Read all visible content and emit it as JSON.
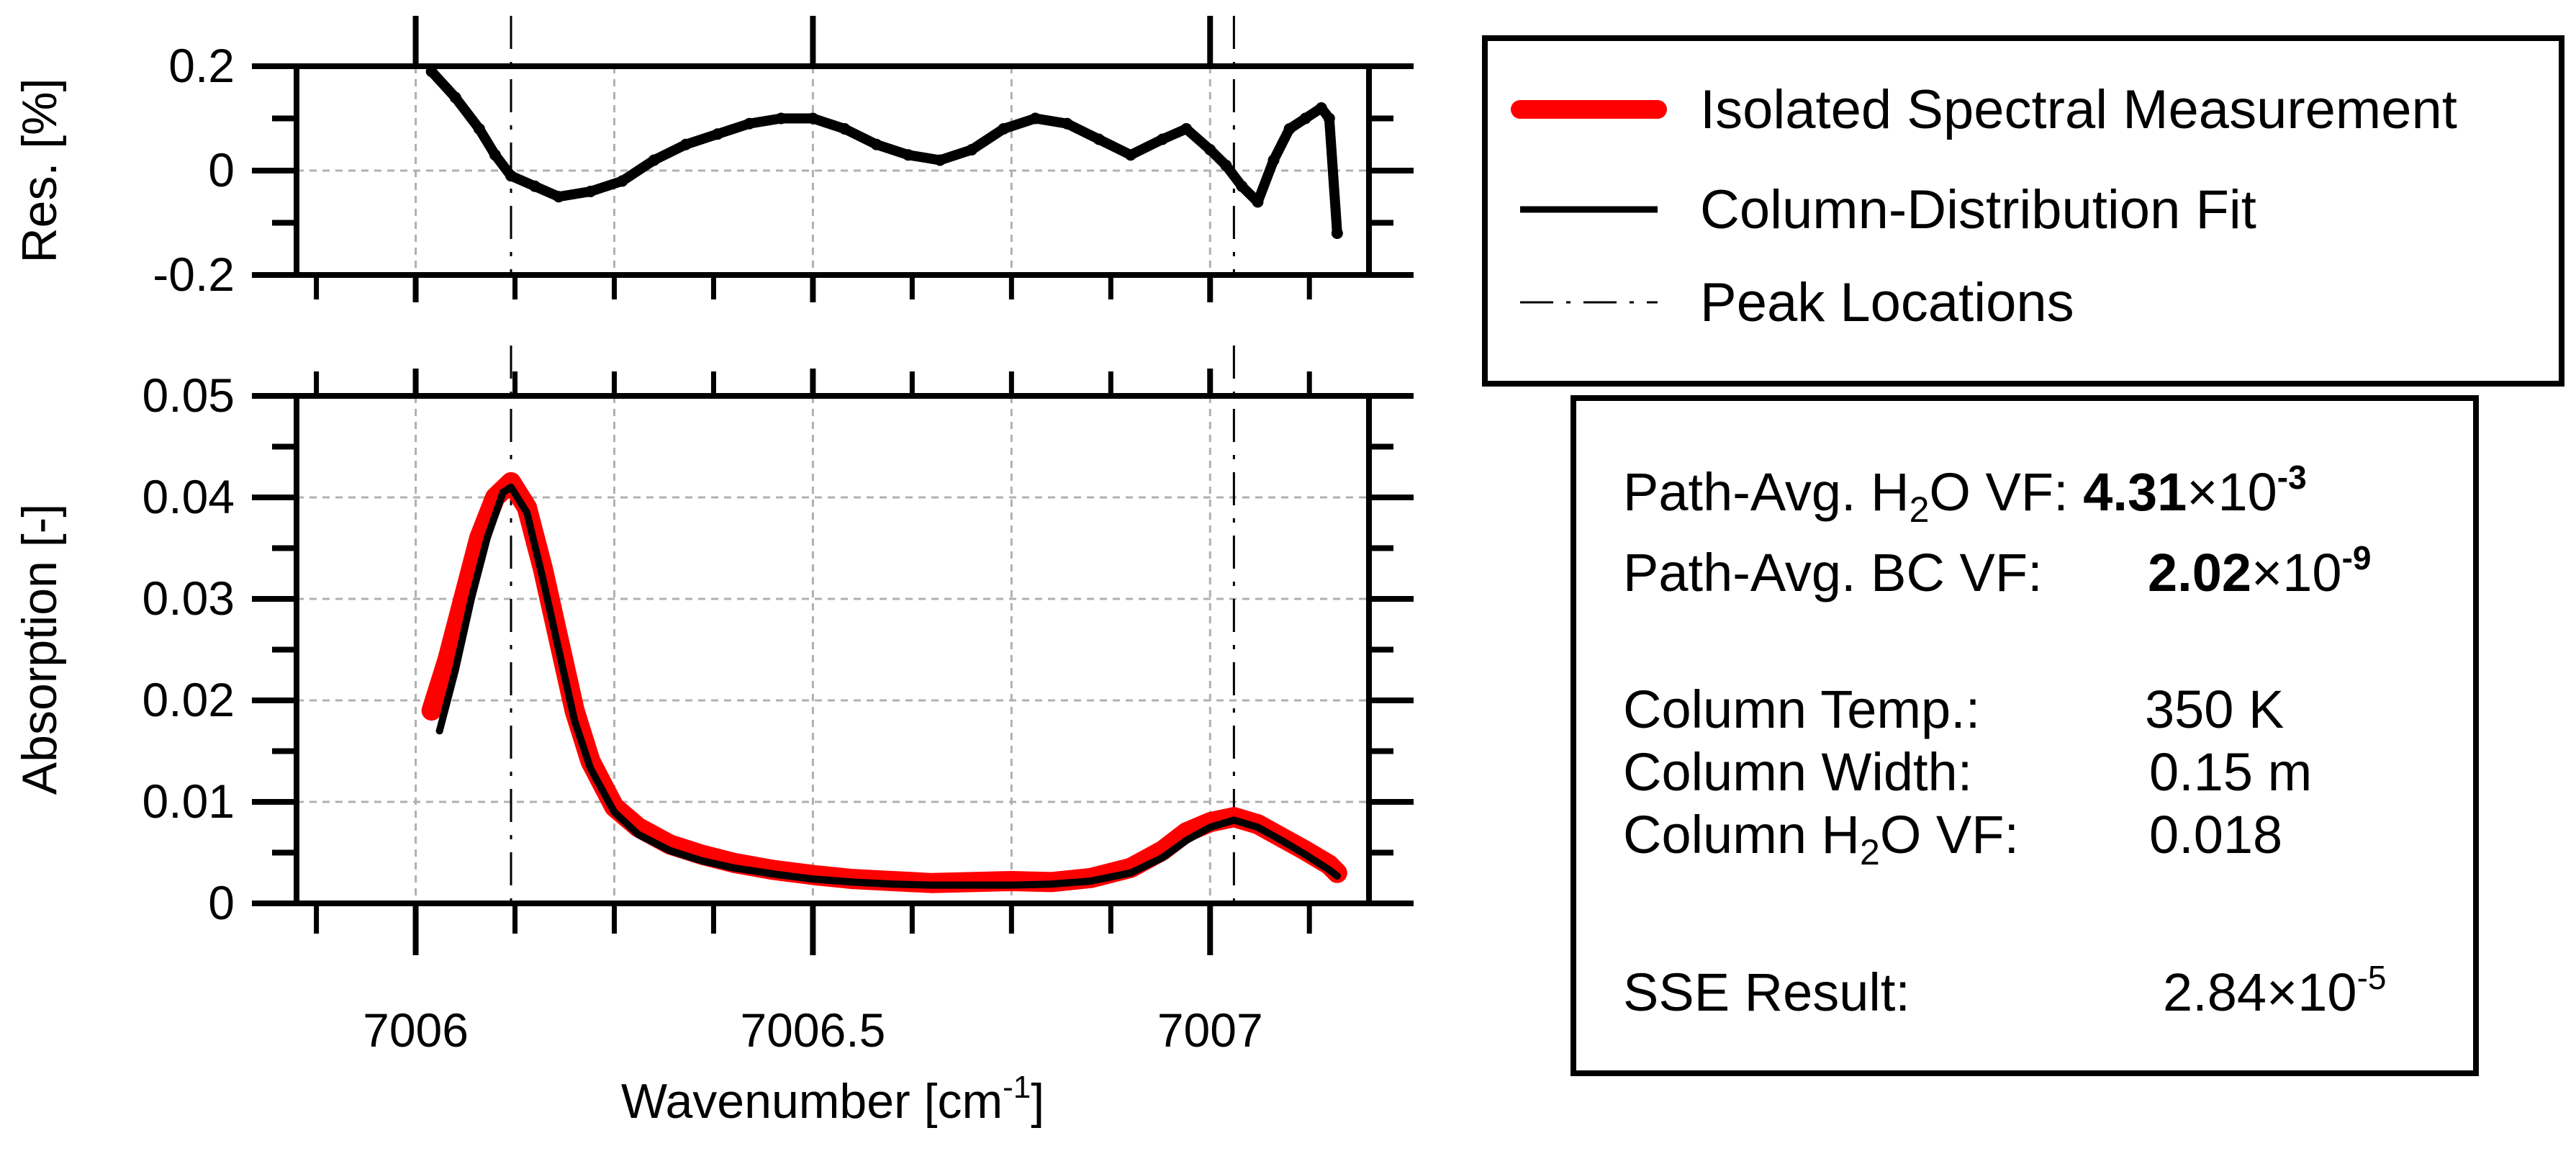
{
  "chart_data": [
    {
      "type": "line",
      "panel": "residual",
      "title": "",
      "xlabel": "",
      "ylabel": "Res. [%]",
      "xlim": [
        7005.85,
        7007.2
      ],
      "ylim": [
        -0.2,
        0.2
      ],
      "yticks": [
        0.2,
        0,
        -0.2
      ],
      "ytick_labels": [
        "0.2",
        "0",
        "-0.2"
      ],
      "grid": true,
      "series": [
        {
          "color": "#000000",
          "x": [
            7006.02,
            7006.05,
            7006.08,
            7006.1,
            7006.12,
            7006.15,
            7006.18,
            7006.22,
            7006.26,
            7006.3,
            7006.34,
            7006.38,
            7006.42,
            7006.46,
            7006.5,
            7006.54,
            7006.58,
            7006.62,
            7006.66,
            7006.7,
            7006.74,
            7006.78,
            7006.82,
            7006.86,
            7006.9,
            7006.94,
            7006.97,
            7007.0,
            7007.02,
            7007.04,
            7007.06,
            7007.08,
            7007.1,
            7007.12,
            7007.14,
            7007.15,
            7007.16
          ],
          "values": [
            0.19,
            0.14,
            0.08,
            0.03,
            -0.01,
            -0.03,
            -0.05,
            -0.04,
            -0.02,
            0.02,
            0.05,
            0.07,
            0.09,
            0.1,
            0.1,
            0.08,
            0.05,
            0.03,
            0.02,
            0.04,
            0.08,
            0.1,
            0.09,
            0.06,
            0.03,
            0.06,
            0.08,
            0.04,
            0.01,
            -0.03,
            -0.06,
            0.02,
            0.08,
            0.1,
            0.12,
            0.1,
            -0.12
          ]
        }
      ]
    },
    {
      "type": "line",
      "panel": "absorption",
      "title": "",
      "xlabel": "Wavenumber [cm-1]",
      "ylabel": "Absorption [-]",
      "xlim": [
        7005.85,
        7007.2
      ],
      "ylim": [
        0,
        0.05
      ],
      "xticks": [
        7006,
        7006.5,
        7007
      ],
      "xtick_labels": [
        "7006",
        "7006.5",
        "7007"
      ],
      "yticks": [
        0,
        0.01,
        0.02,
        0.03,
        0.04,
        0.05
      ],
      "ytick_labels": [
        "0",
        "0.01",
        "0.02",
        "0.03",
        "0.04",
        "0.05"
      ],
      "grid": true,
      "peak_locations": [
        7006.12,
        7007.03
      ],
      "series": [
        {
          "name": "Isolated Spectral Measurement",
          "color": "#ff0000",
          "x": [
            7006.02,
            7006.04,
            7006.06,
            7006.08,
            7006.1,
            7006.12,
            7006.14,
            7006.16,
            7006.18,
            7006.2,
            7006.22,
            7006.25,
            7006.28,
            7006.32,
            7006.36,
            7006.4,
            7006.45,
            7006.5,
            7006.55,
            7006.6,
            7006.65,
            7006.7,
            7006.75,
            7006.8,
            7006.85,
            7006.9,
            7006.94,
            7006.97,
            7007.0,
            7007.03,
            7007.06,
            7007.09,
            7007.12,
            7007.15,
            7007.16
          ],
          "values": [
            0.019,
            0.024,
            0.03,
            0.036,
            0.04,
            0.0415,
            0.039,
            0.033,
            0.026,
            0.019,
            0.014,
            0.0095,
            0.0075,
            0.0058,
            0.0048,
            0.004,
            0.0033,
            0.0028,
            0.0024,
            0.0022,
            0.002,
            0.0021,
            0.0022,
            0.0021,
            0.0025,
            0.0035,
            0.0052,
            0.007,
            0.008,
            0.0085,
            0.0078,
            0.0065,
            0.0052,
            0.0038,
            0.003
          ]
        },
        {
          "name": "Column-Distribution Fit",
          "color": "#000000",
          "x": [
            7006.03,
            7006.05,
            7006.07,
            7006.09,
            7006.11,
            7006.12,
            7006.14,
            7006.16,
            7006.18,
            7006.2,
            7006.22,
            7006.25,
            7006.28,
            7006.32,
            7006.36,
            7006.4,
            7006.45,
            7006.5,
            7006.55,
            7006.6,
            7006.65,
            7006.7,
            7006.75,
            7006.8,
            7006.85,
            7006.9,
            7006.94,
            7006.97,
            7007.0,
            7007.03,
            7007.06,
            7007.09,
            7007.12,
            7007.15,
            7007.16
          ],
          "values": [
            0.017,
            0.023,
            0.03,
            0.036,
            0.0405,
            0.041,
            0.0385,
            0.032,
            0.025,
            0.018,
            0.0133,
            0.009,
            0.0068,
            0.0052,
            0.0042,
            0.0035,
            0.0029,
            0.0024,
            0.0021,
            0.0019,
            0.0018,
            0.0018,
            0.0018,
            0.0019,
            0.0022,
            0.003,
            0.0045,
            0.0062,
            0.0075,
            0.0082,
            0.0075,
            0.0062,
            0.0048,
            0.0033,
            0.0027
          ]
        }
      ]
    }
  ],
  "legend": {
    "items": [
      {
        "label": "Isolated Spectral Measurement",
        "style": "thick-red-line",
        "color": "#ff0000"
      },
      {
        "label": "Column-Distribution Fit",
        "style": "black-line",
        "color": "#000000"
      },
      {
        "label": "Peak Locations",
        "style": "dash-dot-line",
        "color": "#000000"
      }
    ]
  },
  "info": {
    "h2o_prefix": "Path-Avg. H",
    "h2o_sub": "2",
    "h2o_suffix": "O VF: ",
    "h2o_value": "4.31",
    "h2o_times": "×10",
    "h2o_exp": "-3",
    "bc_label": "Path-Avg. BC VF:",
    "bc_value": "2.02",
    "bc_times": "×10",
    "bc_exp": "-9",
    "temp_label": "Column Temp.:",
    "temp_value": "350 K",
    "width_label": "Column Width:",
    "width_value": "0.15 m",
    "col_h2o_prefix": "Column H",
    "col_h2o_sub": "2",
    "col_h2o_suffix": "O VF:",
    "col_h2o_value": "0.018",
    "sse_label": "SSE Result:",
    "sse_value": "2.84",
    "sse_times": "×10",
    "sse_exp": "-5"
  },
  "axes_text": {
    "xlabel_main": "Wavenumber [cm",
    "xlabel_sup": "-1",
    "xlabel_close": "]"
  }
}
